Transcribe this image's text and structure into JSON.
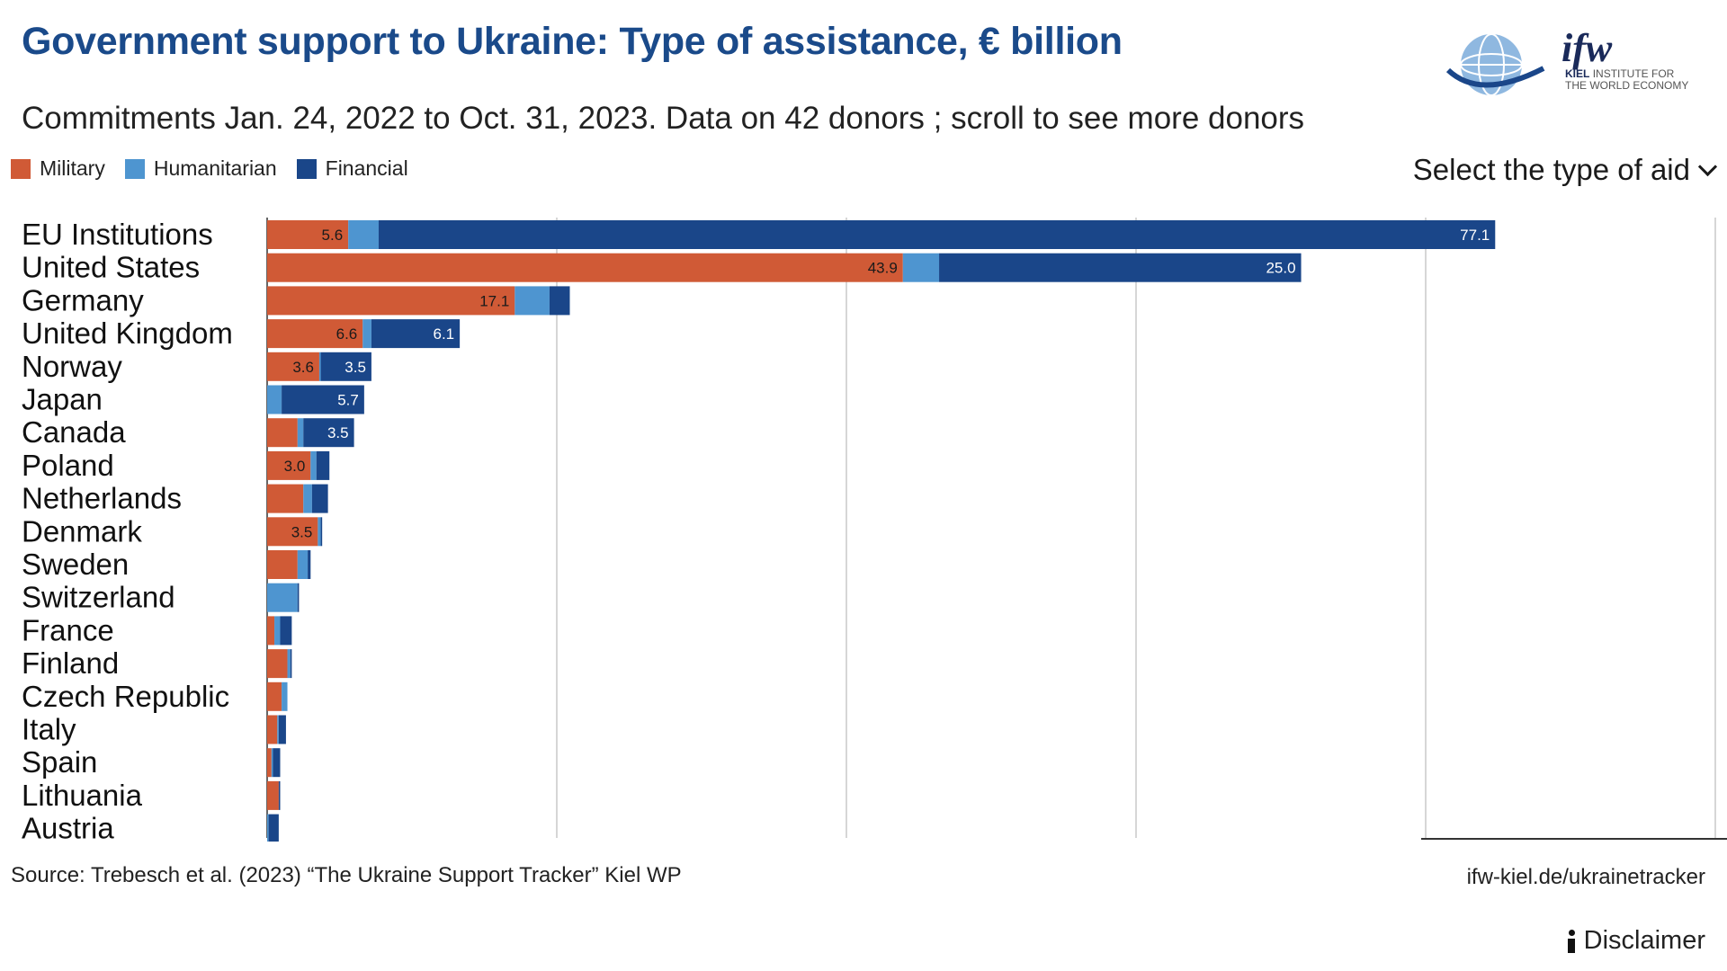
{
  "header": {
    "title": "Government support to Ukraine:  Type of assistance, € billion",
    "subtitle": "Commitments Jan. 24, 2022 to Oct. 31, 2023. Data on 42 donors ; scroll to see more donors"
  },
  "logo": {
    "text": "ifw",
    "line1": "KIEL",
    "line1b": "INSTITUTE FOR",
    "line2": "THE WORLD ECONOMY"
  },
  "controls": {
    "select_label": "Select the type of aid"
  },
  "legend": [
    {
      "label": "Military",
      "color": "#d05a36"
    },
    {
      "label": "Humanitarian",
      "color": "#4e95d0"
    },
    {
      "label": "Financial",
      "color": "#1a4689"
    }
  ],
  "footer": {
    "source": "Source: Trebesch et al. (2023) “The Ukraine Support Tracker” Kiel WP",
    "link": "ifw-kiel.de/ukrainetracker",
    "disclaimer": "Disclaimer"
  },
  "chart_data": {
    "type": "bar",
    "orientation": "horizontal",
    "stacked": true,
    "xlim": [
      0,
      100
    ],
    "grid": true,
    "categories": [
      "EU Institutions",
      "United States",
      "Germany",
      "United Kingdom",
      "Norway",
      "Japan",
      "Canada",
      "Poland",
      "Netherlands",
      "Denmark",
      "Sweden",
      "Switzerland",
      "France",
      "Finland",
      "Czech Republic",
      "Italy",
      "Spain",
      "Lithuania",
      "Austria"
    ],
    "series": [
      {
        "name": "Military",
        "color": "#d05a36",
        "values": [
          5.6,
          43.9,
          17.1,
          6.6,
          3.6,
          0,
          2.1,
          3.0,
          2.5,
          3.5,
          2.1,
          0,
          0.5,
          1.4,
          1.0,
          0.7,
          0.3,
          0.8,
          0
        ],
        "labels": [
          "5.6",
          "43.9",
          "17.1",
          "6.6",
          "3.6",
          "",
          "",
          "3.0",
          "",
          "3.5",
          "",
          "",
          "",
          "",
          "",
          "",
          "",
          "",
          ""
        ]
      },
      {
        "name": "Humanitarian",
        "color": "#4e95d0",
        "values": [
          2.1,
          2.5,
          2.4,
          0.6,
          0.1,
          1.0,
          0.4,
          0.4,
          0.6,
          0.2,
          0.7,
          2.1,
          0.4,
          0.2,
          0.4,
          0.1,
          0.1,
          0,
          0.1
        ],
        "labels": [
          "",
          "",
          "",
          "",
          "",
          "",
          "",
          "",
          "",
          "",
          "",
          "",
          "",
          "",
          "",
          "",
          "",
          "",
          ""
        ]
      },
      {
        "name": "Financial",
        "color": "#1a4689",
        "values": [
          77.1,
          25.0,
          1.4,
          6.1,
          3.5,
          5.7,
          3.5,
          0.9,
          1.1,
          0.1,
          0.2,
          0.1,
          0.8,
          0.1,
          0,
          0.5,
          0.5,
          0.1,
          0.7
        ],
        "labels": [
          "77.1",
          "25.0",
          "",
          "6.1",
          "3.5",
          "5.7",
          "3.5",
          "",
          "",
          "",
          "",
          "",
          "",
          "",
          "",
          "",
          "",
          "",
          ""
        ]
      }
    ]
  }
}
